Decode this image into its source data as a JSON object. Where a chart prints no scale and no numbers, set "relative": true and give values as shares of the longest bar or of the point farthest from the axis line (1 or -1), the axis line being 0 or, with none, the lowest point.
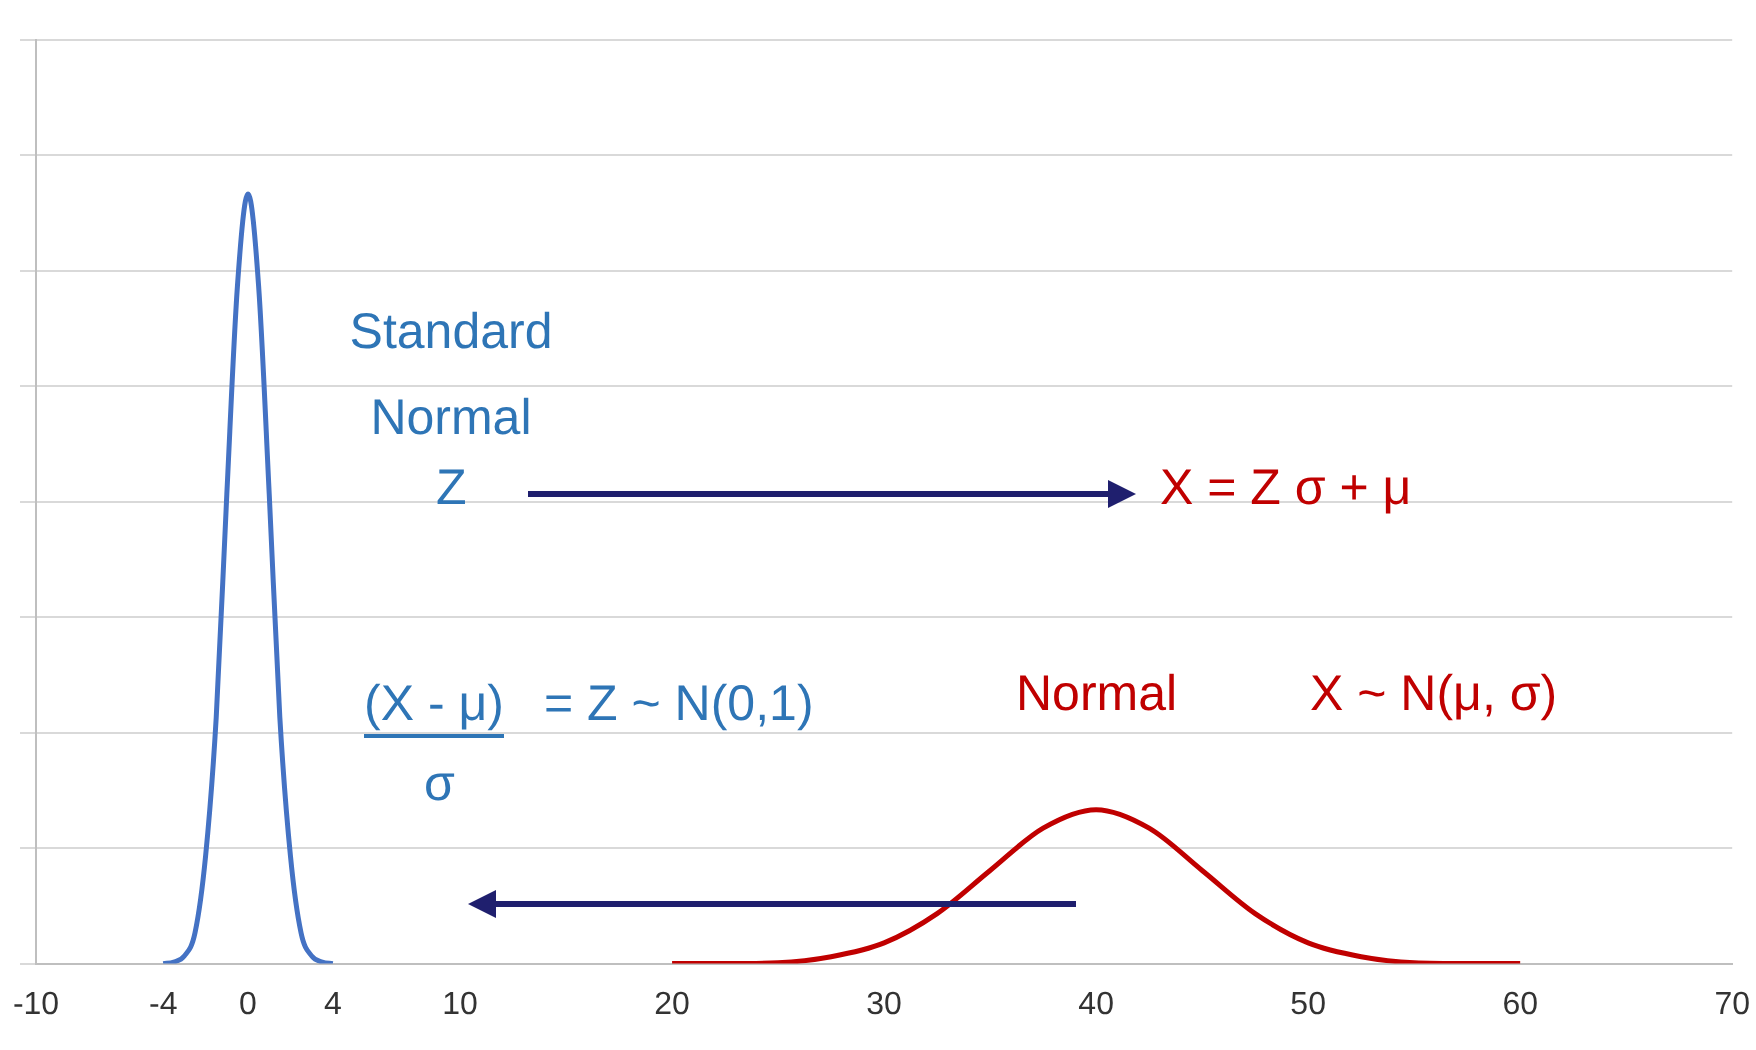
{
  "chart_data": {
    "type": "line",
    "relative": true,
    "grid": "y",
    "legend": false,
    "marker": "none",
    "line_style": "solid",
    "xlim": [
      -10,
      70
    ],
    "xticks": [
      -10,
      -4,
      0,
      4,
      10,
      20,
      30,
      40,
      50,
      60,
      70
    ],
    "series": [
      {
        "color": "#4472c4",
        "x": [
          -4,
          -3.5,
          -3,
          -2.5,
          -2,
          -1.5,
          -1,
          -0.5,
          0,
          0.5,
          1,
          1.5,
          2,
          2.5,
          3,
          3.5,
          4
        ],
        "values": [
          0,
          0.002,
          0.01,
          0.04,
          0.14,
          0.32,
          0.61,
          0.88,
          1,
          0.88,
          0.61,
          0.32,
          0.14,
          0.04,
          0.01,
          0.002,
          0
        ]
      },
      {
        "color": "#c00000",
        "x": [
          20,
          22.5,
          25,
          27.5,
          30,
          32.5,
          35,
          37.5,
          40,
          42.5,
          45,
          47.5,
          50,
          52.5,
          55,
          57.5,
          60
        ],
        "values": [
          0,
          0,
          0.001,
          0.009,
          0.027,
          0.065,
          0.121,
          0.176,
          0.2,
          0.176,
          0.121,
          0.065,
          0.027,
          0.009,
          0.001,
          0,
          0
        ]
      }
    ],
    "annotations": [
      "Standard Normal",
      "Z",
      "X = Z σ + μ",
      "(X - μ)",
      "σ",
      "= Z ~ N(0,1)",
      "Normal",
      "X ~ N(μ, σ)"
    ]
  }
}
